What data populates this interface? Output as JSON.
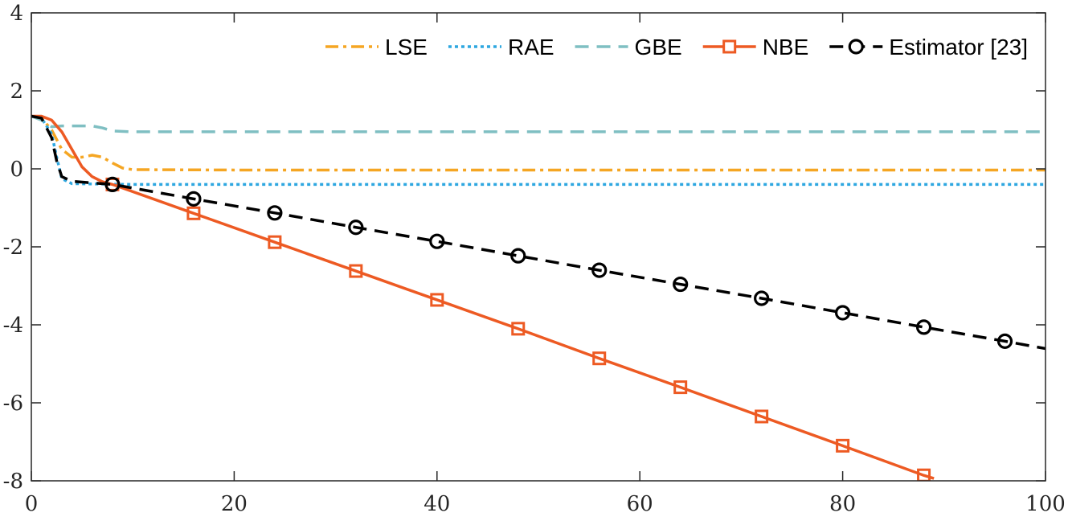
{
  "chart_data": {
    "type": "line",
    "title": "",
    "xlabel": "",
    "ylabel": "",
    "xlim": [
      0,
      100
    ],
    "ylim": [
      -8,
      4
    ],
    "xticks": [
      0,
      20,
      40,
      60,
      80,
      100
    ],
    "yticks": [
      -8,
      -6,
      -4,
      -2,
      0,
      2,
      4
    ],
    "xtick_labels": [
      "0",
      "20",
      "40",
      "60",
      "80",
      "100"
    ],
    "ytick_labels": [
      "-8",
      "-6",
      "-4",
      "-2",
      "0",
      "2",
      "4"
    ],
    "grid": false,
    "legend_position": "top-right",
    "series": [
      {
        "name": "LSE",
        "color": "#f5a623",
        "style": "dashdot",
        "marker": "none",
        "x": [
          0,
          1,
          2,
          3,
          4,
          5,
          6,
          7,
          8,
          9,
          10,
          20,
          40,
          60,
          80,
          100
        ],
        "y": [
          1.35,
          1.3,
          1.0,
          0.5,
          0.3,
          0.3,
          0.35,
          0.3,
          0.15,
          0.02,
          -0.02,
          -0.03,
          -0.03,
          -0.03,
          -0.03,
          -0.03
        ]
      },
      {
        "name": "RAE",
        "color": "#2ea7e0",
        "style": "dotted",
        "marker": "none",
        "x": [
          0,
          1,
          2,
          2.5,
          3,
          4,
          10,
          20,
          40,
          60,
          80,
          100
        ],
        "y": [
          1.35,
          1.3,
          0.9,
          0.3,
          -0.25,
          -0.38,
          -0.4,
          -0.4,
          -0.4,
          -0.4,
          -0.4,
          -0.4
        ]
      },
      {
        "name": "GBE",
        "color": "#7fbfc2",
        "style": "dashed",
        "marker": "none",
        "x": [
          0,
          1,
          2,
          3,
          6,
          7,
          8,
          10,
          20,
          40,
          60,
          80,
          100
        ],
        "y": [
          1.35,
          1.25,
          1.08,
          1.1,
          1.1,
          1.05,
          0.97,
          0.95,
          0.95,
          0.95,
          0.95,
          0.95,
          0.95
        ]
      },
      {
        "name": "NBE",
        "color": "#ed5a23",
        "style": "solid",
        "marker": "square",
        "x": [
          0,
          1,
          2,
          3,
          4,
          5,
          6,
          7,
          8,
          16,
          24,
          32,
          40,
          48,
          56,
          64,
          72,
          80,
          88,
          89
        ],
        "y": [
          1.35,
          1.35,
          1.25,
          0.95,
          0.5,
          0.05,
          -0.2,
          -0.33,
          -0.4,
          -1.14,
          -1.88,
          -2.62,
          -3.36,
          -4.1,
          -4.86,
          -5.6,
          -6.35,
          -7.1,
          -7.86,
          -7.94
        ],
        "marker_x": [
          8,
          16,
          24,
          32,
          40,
          48,
          56,
          64,
          72,
          80,
          88
        ],
        "marker_y": [
          -0.4,
          -1.14,
          -1.88,
          -2.62,
          -3.36,
          -4.1,
          -4.86,
          -5.6,
          -6.35,
          -7.1,
          -7.86
        ]
      },
      {
        "name": "Estimator [23]",
        "color": "#000000",
        "style": "dashed",
        "marker": "circle",
        "x": [
          0,
          1,
          2,
          2.5,
          3,
          4,
          8,
          16,
          24,
          32,
          40,
          48,
          56,
          64,
          72,
          80,
          88,
          96,
          100
        ],
        "y": [
          1.35,
          1.3,
          0.8,
          0.2,
          -0.2,
          -0.32,
          -0.4,
          -0.77,
          -1.13,
          -1.5,
          -1.86,
          -2.23,
          -2.6,
          -2.96,
          -3.32,
          -3.69,
          -4.06,
          -4.42,
          -4.61
        ],
        "marker_x": [
          8,
          16,
          24,
          32,
          40,
          48,
          56,
          64,
          72,
          80,
          88,
          96
        ],
        "marker_y": [
          -0.4,
          -0.77,
          -1.13,
          -1.5,
          -1.86,
          -2.23,
          -2.6,
          -2.96,
          -3.32,
          -3.69,
          -4.06,
          -4.42
        ]
      }
    ]
  }
}
